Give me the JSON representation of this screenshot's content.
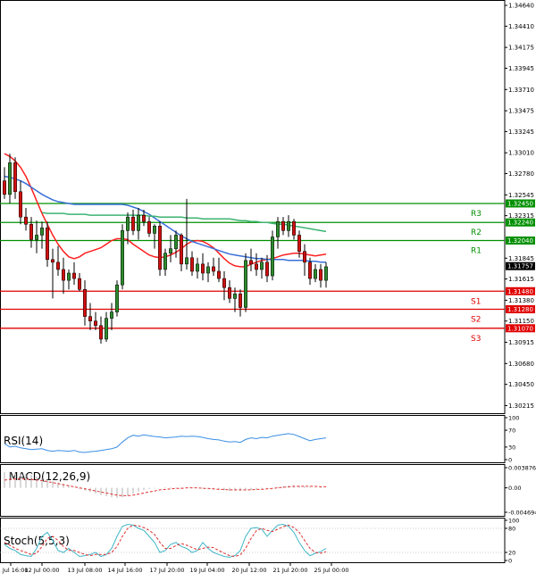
{
  "colors": {
    "bull": "#2e8b2e",
    "bear": "#d01010",
    "wick": "#000000",
    "resistance": "#009000",
    "support": "#e00000",
    "ma_red": "#ff2020",
    "ma_blue": "#3a6fd8",
    "ma_green": "#3cb371",
    "rsi": "#3a8ee6",
    "macd_hist": "#b0b0b0",
    "macd_signal": "#e03030",
    "stoch_k": "#3fb6c8",
    "stoch_d": "#e03030",
    "current": "#000000"
  },
  "chart_data": [
    {
      "type": "candlestick",
      "y_ticks": [
        "1.34640",
        "1.34410",
        "1.34175",
        "1.33945",
        "1.33710",
        "1.33475",
        "1.33245",
        "1.33010",
        "1.32780",
        "1.32545",
        "1.32315",
        "1.31845",
        "1.31615",
        "1.31380",
        "1.31150",
        "1.30915",
        "1.30680",
        "1.30450",
        "1.30215"
      ],
      "ylim": [
        1.3019,
        1.3466
      ],
      "x_labels": [
        "11 Jul 16:00",
        "12 Jul 00:00",
        "13 Jul 08:00",
        "14 Jul 16:00",
        "17 Jul 20:00",
        "19 Jul 04:00",
        "20 Jul 12:00",
        "21 Jul 20:00",
        "25 Jul 00:00"
      ],
      "candles": [
        [
          1.327,
          1.3285,
          1.325,
          1.3255
        ],
        [
          1.3255,
          1.33,
          1.3245,
          1.329
        ],
        [
          1.329,
          1.3296,
          1.325,
          1.3258
        ],
        [
          1.3258,
          1.327,
          1.3222,
          1.323
        ],
        [
          1.323,
          1.324,
          1.3215,
          1.3222
        ],
        [
          1.3222,
          1.323,
          1.3196,
          1.3205
        ],
        [
          1.3205,
          1.3226,
          1.319,
          1.321
        ],
        [
          1.321,
          1.3225,
          1.3195,
          1.3218
        ],
        [
          1.3218,
          1.3225,
          1.3175,
          1.3183
        ],
        [
          1.3183,
          1.3195,
          1.314,
          1.318
        ],
        [
          1.318,
          1.3198,
          1.3165,
          1.3172
        ],
        [
          1.3172,
          1.3185,
          1.3145,
          1.316
        ],
        [
          1.316,
          1.3172,
          1.315,
          1.3168
        ],
        [
          1.3168,
          1.318,
          1.3155,
          1.3162
        ],
        [
          1.3162,
          1.3168,
          1.3148,
          1.315
        ],
        [
          1.315,
          1.316,
          1.311,
          1.312
        ],
        [
          1.312,
          1.3135,
          1.3105,
          1.3115
        ],
        [
          1.3115,
          1.3125,
          1.3105,
          1.311
        ],
        [
          1.311,
          1.312,
          1.309,
          1.3095
        ],
        [
          1.3095,
          1.3125,
          1.3092,
          1.3118
        ],
        [
          1.3118,
          1.3135,
          1.3105,
          1.3125
        ],
        [
          1.3125,
          1.316,
          1.312,
          1.3155
        ],
        [
          1.3155,
          1.3222,
          1.315,
          1.3215
        ],
        [
          1.3215,
          1.3235,
          1.32,
          1.323
        ],
        [
          1.323,
          1.3238,
          1.321,
          1.3215
        ],
        [
          1.3215,
          1.324,
          1.3205,
          1.3232
        ],
        [
          1.3232,
          1.3238,
          1.322,
          1.3225
        ],
        [
          1.3225,
          1.323,
          1.3208,
          1.3212
        ],
        [
          1.3212,
          1.3222,
          1.3195,
          1.322
        ],
        [
          1.322,
          1.3225,
          1.3165,
          1.3172
        ],
        [
          1.3172,
          1.3195,
          1.3165,
          1.319
        ],
        [
          1.319,
          1.321,
          1.318,
          1.3195
        ],
        [
          1.3195,
          1.3215,
          1.3185,
          1.321
        ],
        [
          1.321,
          1.3212,
          1.317,
          1.3178
        ],
        [
          1.3178,
          1.325,
          1.3172,
          1.3185
        ],
        [
          1.3185,
          1.3192,
          1.3165,
          1.317
        ],
        [
          1.317,
          1.3185,
          1.3162,
          1.3178
        ],
        [
          1.3178,
          1.319,
          1.316,
          1.3168
        ],
        [
          1.3168,
          1.318,
          1.3158,
          1.3175
        ],
        [
          1.3175,
          1.3185,
          1.3165,
          1.317
        ],
        [
          1.317,
          1.3185,
          1.3158,
          1.3162
        ],
        [
          1.3162,
          1.317,
          1.3138,
          1.3152
        ],
        [
          1.3152,
          1.316,
          1.3135,
          1.314
        ],
        [
          1.314,
          1.3152,
          1.3125,
          1.3145
        ],
        [
          1.3145,
          1.315,
          1.312,
          1.313
        ],
        [
          1.313,
          1.319,
          1.3125,
          1.3182
        ],
        [
          1.3182,
          1.3195,
          1.317,
          1.3178
        ],
        [
          1.3178,
          1.319,
          1.3165,
          1.3172
        ],
        [
          1.3172,
          1.3185,
          1.3162,
          1.318
        ],
        [
          1.318,
          1.3188,
          1.3158,
          1.3165
        ],
        [
          1.3165,
          1.3215,
          1.316,
          1.3208
        ],
        [
          1.3208,
          1.323,
          1.3195,
          1.3225
        ],
        [
          1.3225,
          1.323,
          1.321,
          1.3215
        ],
        [
          1.3215,
          1.3232,
          1.3208,
          1.3225
        ],
        [
          1.3225,
          1.3228,
          1.3205,
          1.321
        ],
        [
          1.321,
          1.3215,
          1.3185,
          1.3192
        ],
        [
          1.3192,
          1.32,
          1.3165,
          1.318
        ],
        [
          1.318,
          1.3185,
          1.3155,
          1.3162
        ],
        [
          1.3162,
          1.3178,
          1.3158,
          1.3172
        ],
        [
          1.3172,
          1.3178,
          1.3152,
          1.316
        ],
        [
          1.316,
          1.318,
          1.3152,
          1.3175
        ]
      ],
      "levels": [
        {
          "name": "R3",
          "price_label": "1.32450",
          "value": 1.3245,
          "kind": "resistance"
        },
        {
          "name": "R2",
          "price_label": "1.32240",
          "value": 1.3224,
          "kind": "resistance"
        },
        {
          "name": "R1",
          "price_label": "1.32040",
          "value": 1.3204,
          "kind": "resistance"
        },
        {
          "name": "S1",
          "price_label": "1.31480",
          "value": 1.3148,
          "kind": "support"
        },
        {
          "name": "S2",
          "price_label": "1.31280",
          "value": 1.3128,
          "kind": "support"
        },
        {
          "name": "S3",
          "price_label": "1.31070",
          "value": 1.3107,
          "kind": "support"
        }
      ],
      "current_price_label": "1.31757",
      "current_price": 1.31757,
      "series": [
        {
          "values": [
            1.33,
            1.3297,
            1.3292,
            1.3285,
            1.3275,
            1.3262,
            1.3248,
            1.3234,
            1.3222,
            1.321,
            1.32,
            1.3192,
            1.3186,
            1.3184,
            1.3186,
            1.319,
            1.3192,
            1.3194,
            1.3196,
            1.32,
            1.3204,
            1.3206,
            1.3206,
            1.3205,
            1.32,
            1.3196,
            1.3192,
            1.3188,
            1.3186,
            1.3185,
            1.3186,
            1.3188,
            1.3191,
            1.3195,
            1.32,
            1.3203,
            1.3204,
            1.3203,
            1.32,
            1.3196,
            1.319,
            1.3184,
            1.3179,
            1.3176,
            1.3175,
            1.3175,
            1.3178,
            1.318,
            1.3182,
            1.3183,
            1.3184,
            1.3186,
            1.3188,
            1.3189,
            1.319,
            1.319,
            1.3189,
            1.3188,
            1.3187,
            1.3188,
            1.3189
          ]
        },
        {
          "values": [
            1.3275,
            1.3274,
            1.3272,
            1.327,
            1.3267,
            1.3263,
            1.3259,
            1.3255,
            1.3252,
            1.3249,
            1.3247,
            1.3246,
            1.3245,
            1.3244,
            1.3244,
            1.3244,
            1.3244,
            1.3244,
            1.3244,
            1.3244,
            1.3244,
            1.3244,
            1.3244,
            1.3243,
            1.3241,
            1.3239,
            1.3236,
            1.3233,
            1.3229,
            1.3225,
            1.3221,
            1.3217,
            1.3213,
            1.3209,
            1.3206,
            1.3203,
            1.3201,
            1.3199,
            1.3197,
            1.3195,
            1.3193,
            1.3191,
            1.3189,
            1.3188,
            1.3187,
            1.3186,
            1.3185,
            1.3184,
            1.3184,
            1.3183,
            1.3183,
            1.3183,
            1.3183,
            1.3182,
            1.3182,
            1.3182,
            1.3182,
            1.3181,
            1.3181,
            1.318,
            1.318
          ]
        },
        {
          "values": [
            null,
            null,
            null,
            null,
            null,
            null,
            null,
            1.3235,
            1.3234,
            1.3234,
            1.3234,
            1.3234,
            1.3233,
            1.3233,
            1.3233,
            1.3233,
            1.3232,
            1.3232,
            1.3232,
            1.3232,
            1.3232,
            1.3232,
            1.3232,
            1.3232,
            1.3232,
            1.3232,
            1.3232,
            1.3231,
            1.3231,
            1.323,
            1.323,
            1.323,
            1.323,
            1.323,
            1.3229,
            1.3229,
            1.3229,
            1.3228,
            1.3228,
            1.3228,
            1.3228,
            1.3228,
            1.3228,
            1.3227,
            1.3226,
            1.3226,
            1.3225,
            1.3225,
            1.3224,
            1.3224,
            1.3223,
            1.3222,
            1.3222,
            1.3221,
            1.322,
            1.3219,
            1.3218,
            1.3217,
            1.3216,
            1.3215,
            1.3214
          ]
        }
      ]
    },
    {
      "type": "line",
      "title": "RSI(14)",
      "y_ticks": [
        "100",
        "70",
        "30",
        "0"
      ],
      "ylim": [
        0,
        100
      ],
      "series": [
        {
          "values": [
            38,
            30,
            32,
            28,
            26,
            24,
            25,
            26,
            22,
            20,
            22,
            21,
            20,
            22,
            18,
            17,
            19,
            20,
            22,
            24,
            26,
            30,
            42,
            52,
            58,
            56,
            59,
            57,
            55,
            54,
            52,
            53,
            54,
            56,
            55,
            56,
            55,
            53,
            50,
            48,
            47,
            44,
            42,
            43,
            41,
            48,
            52,
            50,
            53,
            52,
            56,
            58,
            60,
            62,
            60,
            55,
            50,
            45,
            48,
            50,
            52
          ]
        }
      ]
    },
    {
      "type": "bar",
      "title": "MACD(12,26,9)",
      "y_ticks": [
        "0.003876",
        "0.00",
        "-0.004694"
      ],
      "ylim": [
        -0.004694,
        0.003876
      ],
      "series": [
        {
          "values": [
            0.003,
            0.0031,
            0.003,
            0.0029,
            0.0027,
            0.0025,
            0.0022,
            0.0019,
            0.0016,
            0.0013,
            0.001,
            0.0007,
            0.0004,
            0.0001,
            -0.0002,
            -0.0005,
            -0.0008,
            -0.0011,
            -0.0014,
            -0.0016,
            -0.0018,
            -0.0019,
            -0.0018,
            -0.0015,
            -0.0011,
            -0.0007,
            -0.0004,
            -0.0002,
            -0.0001,
            0.0,
            0.0001,
            0.0001,
            0.0001,
            0.0001,
            0.0001,
            0.0,
            0.0,
            -0.0001,
            -0.0002,
            -0.0003,
            -0.0004,
            -0.0005,
            -0.0006,
            -0.0006,
            -0.0006,
            -0.0005,
            -0.0004,
            -0.0003,
            -0.0002,
            -0.0001,
            0.0,
            0.0002,
            0.0003,
            0.0004,
            0.0004,
            0.0004,
            0.0003,
            0.0002,
            0.0001,
            0.0001,
            0.0
          ]
        },
        {
          "values": [
            0.0015,
            0.0016,
            0.0017,
            0.0017,
            0.0017,
            0.0016,
            0.0015,
            0.0014,
            0.0012,
            0.001,
            0.0008,
            0.0006,
            0.0004,
            0.0002,
            0.0,
            -0.0002,
            -0.0004,
            -0.0006,
            -0.0008,
            -0.001,
            -0.0012,
            -0.0014,
            -0.0015,
            -0.0015,
            -0.0014,
            -0.0012,
            -0.001,
            -0.0008,
            -0.0006,
            -0.0004,
            -0.0003,
            -0.0002,
            -0.0001,
            -0.0001,
            0.0,
            0.0,
            0.0,
            -0.0001,
            -0.0001,
            -0.0002,
            -0.0003,
            -0.0003,
            -0.0004,
            -0.0004,
            -0.0004,
            -0.0004,
            -0.0004,
            -0.0003,
            -0.0003,
            -0.0002,
            -0.0001,
            0.0,
            0.0001,
            0.0002,
            0.0003,
            0.0003,
            0.0003,
            0.0003,
            0.0003,
            0.0002,
            0.0002
          ]
        }
      ]
    },
    {
      "type": "line",
      "title": "Stoch(5,5,3)",
      "y_ticks": [
        "100",
        "80",
        "20",
        "0"
      ],
      "ylim": [
        0,
        100
      ],
      "series": [
        {
          "values": [
            40,
            30,
            25,
            15,
            12,
            10,
            30,
            60,
            70,
            50,
            25,
            20,
            30,
            20,
            10,
            12,
            15,
            20,
            10,
            15,
            30,
            60,
            85,
            90,
            88,
            80,
            75,
            60,
            45,
            20,
            25,
            40,
            45,
            35,
            30,
            20,
            25,
            45,
            30,
            20,
            15,
            10,
            8,
            12,
            25,
            60,
            80,
            82,
            78,
            60,
            75,
            88,
            90,
            85,
            70,
            45,
            25,
            12,
            18,
            22,
            30
          ]
        },
        {
          "values": [
            45,
            38,
            30,
            25,
            20,
            15,
            18,
            35,
            55,
            60,
            50,
            35,
            25,
            25,
            20,
            15,
            12,
            15,
            15,
            15,
            20,
            35,
            60,
            80,
            88,
            86,
            82,
            75,
            65,
            45,
            30,
            30,
            37,
            42,
            38,
            32,
            27,
            30,
            33,
            32,
            25,
            18,
            12,
            10,
            14,
            30,
            55,
            74,
            80,
            75,
            72,
            78,
            84,
            88,
            82,
            70,
            50,
            30,
            20,
            18,
            22
          ]
        }
      ]
    }
  ]
}
